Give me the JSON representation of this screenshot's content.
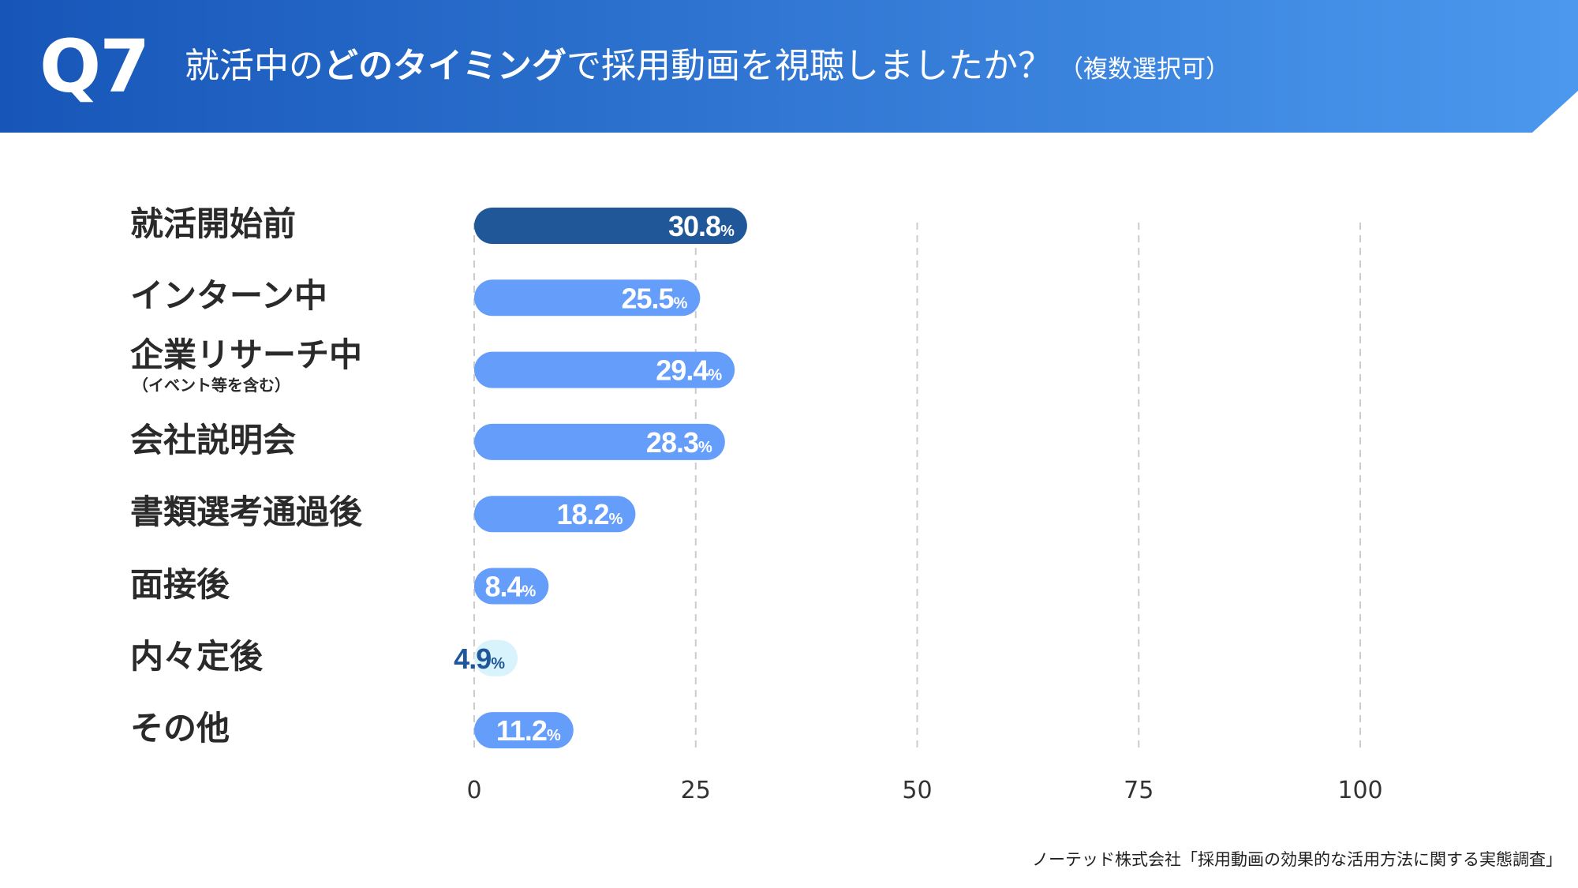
{
  "header": {
    "q_number": "Q7",
    "title_pre": "就活中の",
    "title_strong": "どのタイミング",
    "title_post": "で採用動画を視聴しましたか？",
    "title_note": "（複数選択可）"
  },
  "colors": {
    "header_left": "#1756b8",
    "header_right": "#4b98ee",
    "bar_highlight": "#1f5799",
    "bar_default": "#659dfb",
    "bar_light": "#d9f3fd",
    "label_dark": "#1f5799",
    "grid": "#cccccc"
  },
  "chart_data": {
    "type": "bar",
    "orientation": "horizontal",
    "categories": [
      "就活開始前",
      "インターン中",
      "企業リサーチ中",
      "会社説明会",
      "書類選考通過後",
      "面接後",
      "内々定後",
      "その他"
    ],
    "category_notes": [
      "",
      "",
      "（イベント等を含む）",
      "",
      "",
      "",
      "",
      ""
    ],
    "values": [
      30.8,
      25.5,
      29.4,
      28.3,
      18.2,
      8.4,
      4.9,
      11.2
    ],
    "value_labels": [
      "30.8",
      "25.5",
      "29.4",
      "28.3",
      "18.2",
      "8.4",
      "4.9",
      "11.2"
    ],
    "unit": "%",
    "bar_styles": [
      "highlight",
      "default",
      "default",
      "default",
      "default",
      "default",
      "light",
      "default"
    ],
    "xlim": [
      0,
      100
    ],
    "xticks": [
      0,
      25,
      50,
      75,
      100
    ],
    "grid": "vertical dashed",
    "title": "就活中のどのタイミングで採用動画を視聴しましたか？"
  },
  "source": "ノーテッド株式会社「採用動画の効果的な活用方法に関する実態調査」"
}
